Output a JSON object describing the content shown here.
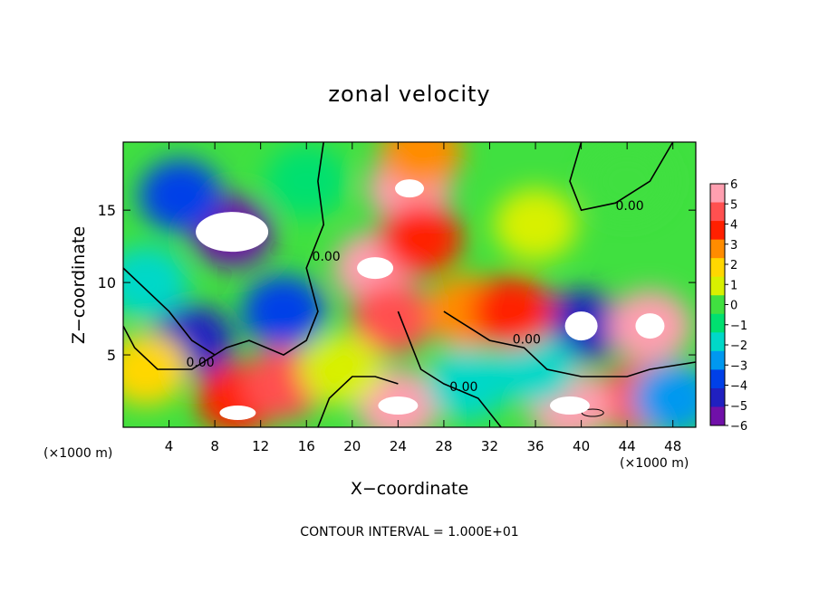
{
  "chart_data": {
    "type": "heatmap",
    "title": "zonal velocity",
    "xlabel": "X−coordinate",
    "ylabel": "Z−coordinate",
    "x_unit_left": "(×1000 m)",
    "x_unit_right": "(×1000 m)",
    "footer": "CONTOUR INTERVAL = 1.000E+01",
    "xlim": [
      0,
      50
    ],
    "ylim": [
      0,
      19.7
    ],
    "x_ticks": [
      4,
      8,
      12,
      16,
      20,
      24,
      28,
      32,
      36,
      40,
      44,
      48
    ],
    "x_tick_labels": [
      "4",
      "8",
      "12",
      "16",
      "20",
      "24",
      "28",
      "32",
      "36",
      "40",
      "44",
      "48"
    ],
    "y_ticks": [
      5,
      10,
      15
    ],
    "y_tick_labels": [
      "5",
      "10",
      "15"
    ],
    "colorbar": {
      "min": -6,
      "max": 6,
      "labels": [
        "6",
        "5",
        "4",
        "3",
        "2",
        "1",
        "0",
        "−1",
        "−2",
        "−3",
        "−4",
        "−5",
        "−6"
      ],
      "colors": [
        "#ff9fb0",
        "#ff5050",
        "#ff2000",
        "#ff8c00",
        "#ffd700",
        "#d8f000",
        "#40e040",
        "#00e070",
        "#00d8c8",
        "#0098f0",
        "#0040e8",
        "#2020c0",
        "#7010a8"
      ]
    },
    "contour_labels": [
      "0.00",
      "0.00",
      "0.00",
      "0.00",
      "0.00"
    ],
    "features": [
      {
        "x": 9.5,
        "z": 13.5,
        "value": -6
      },
      {
        "x": 6,
        "z": 6,
        "value": -4.5
      },
      {
        "x": 5,
        "z": 16,
        "value": -3.5
      },
      {
        "x": 2,
        "z": 10,
        "value": -1.5
      },
      {
        "x": 2,
        "z": 4,
        "value": 2
      },
      {
        "x": 10,
        "z": 2,
        "value": 4.5
      },
      {
        "x": 14,
        "z": 3,
        "value": 5
      },
      {
        "x": 14,
        "z": 8,
        "value": -4
      },
      {
        "x": 22,
        "z": 11,
        "value": 6
      },
      {
        "x": 25,
        "z": 16.5,
        "value": 6
      },
      {
        "x": 26,
        "z": 13,
        "value": 4.5
      },
      {
        "x": 23.5,
        "z": 7.5,
        "value": 5
      },
      {
        "x": 30,
        "z": 8,
        "value": 3
      },
      {
        "x": 26,
        "z": 19,
        "value": 3
      },
      {
        "x": 36,
        "z": 14,
        "value": 1
      },
      {
        "x": 44,
        "z": 17,
        "value": 0.5
      },
      {
        "x": 40,
        "z": 7,
        "value": -5
      },
      {
        "x": 46,
        "z": 7,
        "value": 6
      },
      {
        "x": 45,
        "z": 2,
        "value": 5
      },
      {
        "x": 39,
        "z": 1.5,
        "value": 6
      },
      {
        "x": 24,
        "z": 1.5,
        "value": 6
      },
      {
        "x": 30,
        "z": 3,
        "value": -2
      },
      {
        "x": 36,
        "z": 4,
        "value": -2
      },
      {
        "x": 34,
        "z": 8,
        "value": 4
      },
      {
        "x": 19,
        "z": 4,
        "value": 1
      },
      {
        "x": 48,
        "z": 2,
        "value": -3
      },
      {
        "x": 16,
        "z": 17,
        "value": -1
      }
    ]
  }
}
